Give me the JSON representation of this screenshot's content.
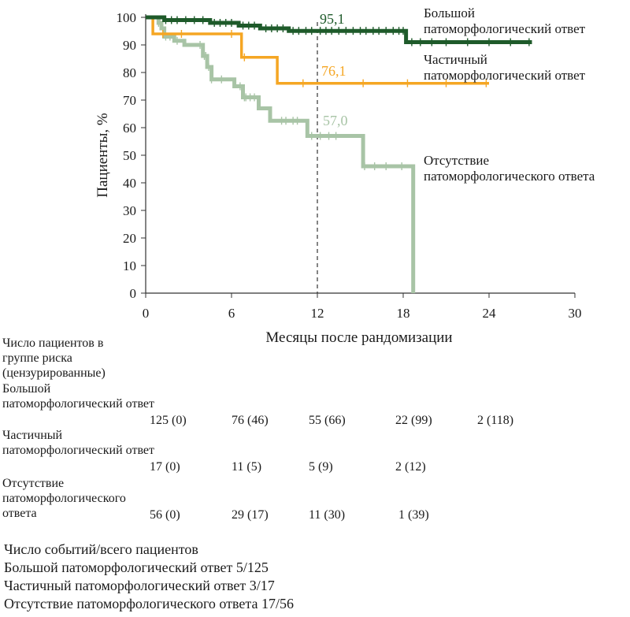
{
  "chart_data": {
    "type": "line",
    "ylabel": "Пациенты, %",
    "xlabel": "Месяцы после рандомизации",
    "xlim": [
      0,
      30
    ],
    "ylim": [
      0,
      100
    ],
    "xticks": [
      0,
      6,
      12,
      18,
      24,
      30
    ],
    "yticks": [
      0,
      10,
      20,
      30,
      40,
      50,
      60,
      70,
      80,
      90,
      100
    ],
    "grid": false,
    "reference_line": {
      "x": 12,
      "style": "dashed"
    },
    "series": [
      {
        "name": "Большой патоморфологический ответ",
        "color": "#1e5a2a",
        "steps": [
          [
            0,
            100
          ],
          [
            1.3,
            100
          ],
          [
            1.3,
            99
          ],
          [
            4.5,
            99
          ],
          [
            4.5,
            98
          ],
          [
            6.5,
            98
          ],
          [
            6.5,
            97
          ],
          [
            8,
            97
          ],
          [
            8,
            96
          ],
          [
            10,
            96
          ],
          [
            10,
            95.1
          ],
          [
            18.2,
            95.1
          ],
          [
            18.2,
            91
          ],
          [
            27,
            91
          ]
        ],
        "censor_x": [
          1.4,
          1.8,
          2.2,
          2.8,
          3.4,
          4.0,
          4.8,
          5.2,
          5.6,
          6.0,
          6.8,
          7.2,
          7.6,
          8.4,
          8.8,
          9.2,
          9.6,
          10.3,
          10.7,
          11.2,
          11.6,
          12.2,
          12.6,
          13.0,
          13.5,
          14.0,
          14.5,
          15.0,
          15.4,
          15.9,
          16.3,
          16.8,
          17.3,
          17.7,
          18.0,
          18.6,
          19.2,
          20.0,
          21.0,
          22.5,
          24.0,
          25.5,
          26.8
        ],
        "label_at_12": "95,1"
      },
      {
        "name": "Частичный патоморфологический ответ",
        "color": "#f5a623",
        "steps": [
          [
            0,
            100
          ],
          [
            0.5,
            100
          ],
          [
            0.5,
            94
          ],
          [
            6.7,
            94
          ],
          [
            6.7,
            85.5
          ],
          [
            9.2,
            85.5
          ],
          [
            9.2,
            76.1
          ],
          [
            24,
            76.1
          ]
        ],
        "censor_x": [
          1.2,
          2.5,
          6.0,
          6.9,
          11.0,
          15.2,
          18.3,
          21.0,
          23.8
        ],
        "label_at_12": "76,1"
      },
      {
        "name": "Отсутствие патоморфологического ответа",
        "color": "#a8c4a6",
        "steps": [
          [
            0,
            100
          ],
          [
            0.9,
            100
          ],
          [
            0.9,
            98
          ],
          [
            1.1,
            98
          ],
          [
            1.1,
            96
          ],
          [
            1.3,
            96
          ],
          [
            1.3,
            93
          ],
          [
            2.0,
            93
          ],
          [
            2.0,
            91.5
          ],
          [
            2.7,
            91.5
          ],
          [
            2.7,
            90
          ],
          [
            4.0,
            90
          ],
          [
            4.0,
            86
          ],
          [
            4.3,
            86
          ],
          [
            4.3,
            82
          ],
          [
            4.6,
            82
          ],
          [
            4.6,
            77.5
          ],
          [
            6.2,
            77.5
          ],
          [
            6.2,
            75
          ],
          [
            6.8,
            75
          ],
          [
            6.8,
            71
          ],
          [
            7.9,
            71
          ],
          [
            7.9,
            67
          ],
          [
            8.7,
            67
          ],
          [
            8.7,
            62.5
          ],
          [
            11.3,
            62.5
          ],
          [
            11.3,
            57
          ],
          [
            15.2,
            57
          ],
          [
            15.2,
            46
          ],
          [
            18.7,
            46
          ],
          [
            18.7,
            0
          ]
        ],
        "censor_x": [
          0.9,
          1.4,
          1.7,
          2.2,
          3.8,
          4.1,
          4.2,
          4.4,
          4.6,
          5.3,
          6.6,
          6.9,
          7.0,
          7.3,
          7.6,
          9.5,
          9.8,
          10.3,
          10.6,
          11.6,
          12.2,
          12.8,
          13.3,
          15.3,
          16.0,
          16.8,
          17.9
        ],
        "label_at_12": "57,0"
      }
    ]
  },
  "legend": {
    "major_line1": "Большой",
    "major_line2": "патоморфологический ответ",
    "partial_line1": "Частичный",
    "partial_line2": "патоморфологический ответ",
    "none_line1": "Отсутствие",
    "none_line2": "патоморфологического ответа"
  },
  "risk_table": {
    "title": "Число пациентов в группе риска (цензурированные)",
    "rows": [
      {
        "label": "Большой патоморфологический ответ",
        "values": [
          "125 (0)",
          "76 (46)",
          "55 (66)",
          "22 (99)",
          "2 (118)"
        ]
      },
      {
        "label": "Частичный патоморфологический ответ",
        "values": [
          "17 (0)",
          "11 (5)",
          "5 (9)",
          "2 (12)"
        ]
      },
      {
        "label": "Отсутствие патоморфологического ответа",
        "values": [
          "56 (0)",
          "29 (17)",
          "11 (30)",
          "1 (39)"
        ]
      }
    ]
  },
  "events": {
    "title": "Число событий/всего пациентов",
    "lines": [
      "Большой патоморфологический ответ 5/125",
      "Частичный патоморфологический ответ 3/17",
      "Отсутствие патоморфологического ответа 17/56"
    ]
  }
}
